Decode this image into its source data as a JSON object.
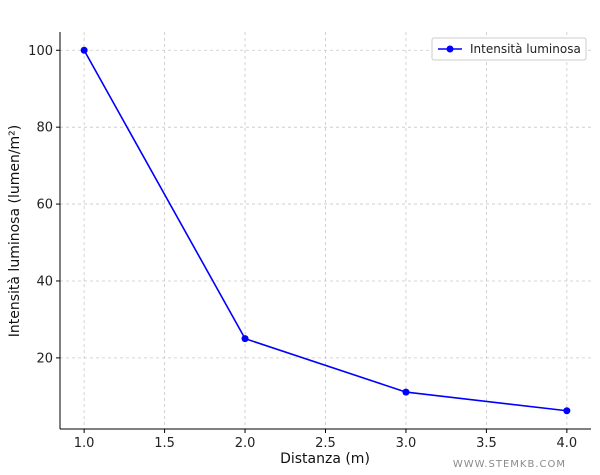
{
  "chart_data": {
    "type": "line",
    "title": "",
    "xlabel": "Distanza (m)",
    "ylabel": "Intensità luminosa (lumen/m²)",
    "xlim": [
      0.85,
      4.15
    ],
    "ylim": [
      1.5,
      104.75
    ],
    "x_ticks": [
      1.0,
      1.5,
      2.0,
      2.5,
      3.0,
      3.5,
      4.0
    ],
    "x_tick_labels": [
      "1.0",
      "1.5",
      "2.0",
      "2.5",
      "3.0",
      "3.5",
      "4.0"
    ],
    "y_ticks": [
      20,
      40,
      60,
      80,
      100
    ],
    "y_tick_labels": [
      "20",
      "40",
      "60",
      "80",
      "100"
    ],
    "grid": true,
    "legend_position": "top-right",
    "series": [
      {
        "name": "Intensità luminosa",
        "color": "#0000ff",
        "marker": "circle",
        "x": [
          1.0,
          2.0,
          3.0,
          4.0
        ],
        "y": [
          100,
          25,
          11.1,
          6.25
        ]
      }
    ]
  },
  "watermark": "WWW.STEMKB.COM"
}
